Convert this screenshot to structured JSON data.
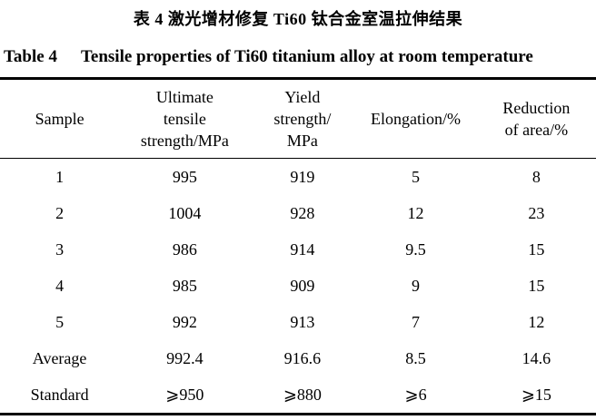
{
  "captions": {
    "chinese": "表 4  激光增材修复 Ti60 钛合金室温拉伸结果",
    "english_label": "Table 4",
    "english_text": "Tensile properties of Ti60 titanium alloy at room temperature"
  },
  "table": {
    "headers": [
      "Sample",
      "Ultimate\ntensile\nstrength/MPa",
      "Yield\nstrength/\nMPa",
      "Elongation/%",
      "Reduction\nof area/%"
    ],
    "rows": [
      [
        "1",
        "995",
        "919",
        "5",
        "8"
      ],
      [
        "2",
        "1004",
        "928",
        "12",
        "23"
      ],
      [
        "3",
        "986",
        "914",
        "9.5",
        "15"
      ],
      [
        "4",
        "985",
        "909",
        "9",
        "15"
      ],
      [
        "5",
        "992",
        "913",
        "7",
        "12"
      ],
      [
        "Average",
        "992.4",
        "916.6",
        "8.5",
        "14.6"
      ],
      [
        "Standard",
        "⩾950",
        "⩾880",
        "⩾6",
        "⩾15"
      ]
    ]
  },
  "colors": {
    "text": "#000000",
    "background": "#ffffff",
    "rule": "#000000"
  }
}
